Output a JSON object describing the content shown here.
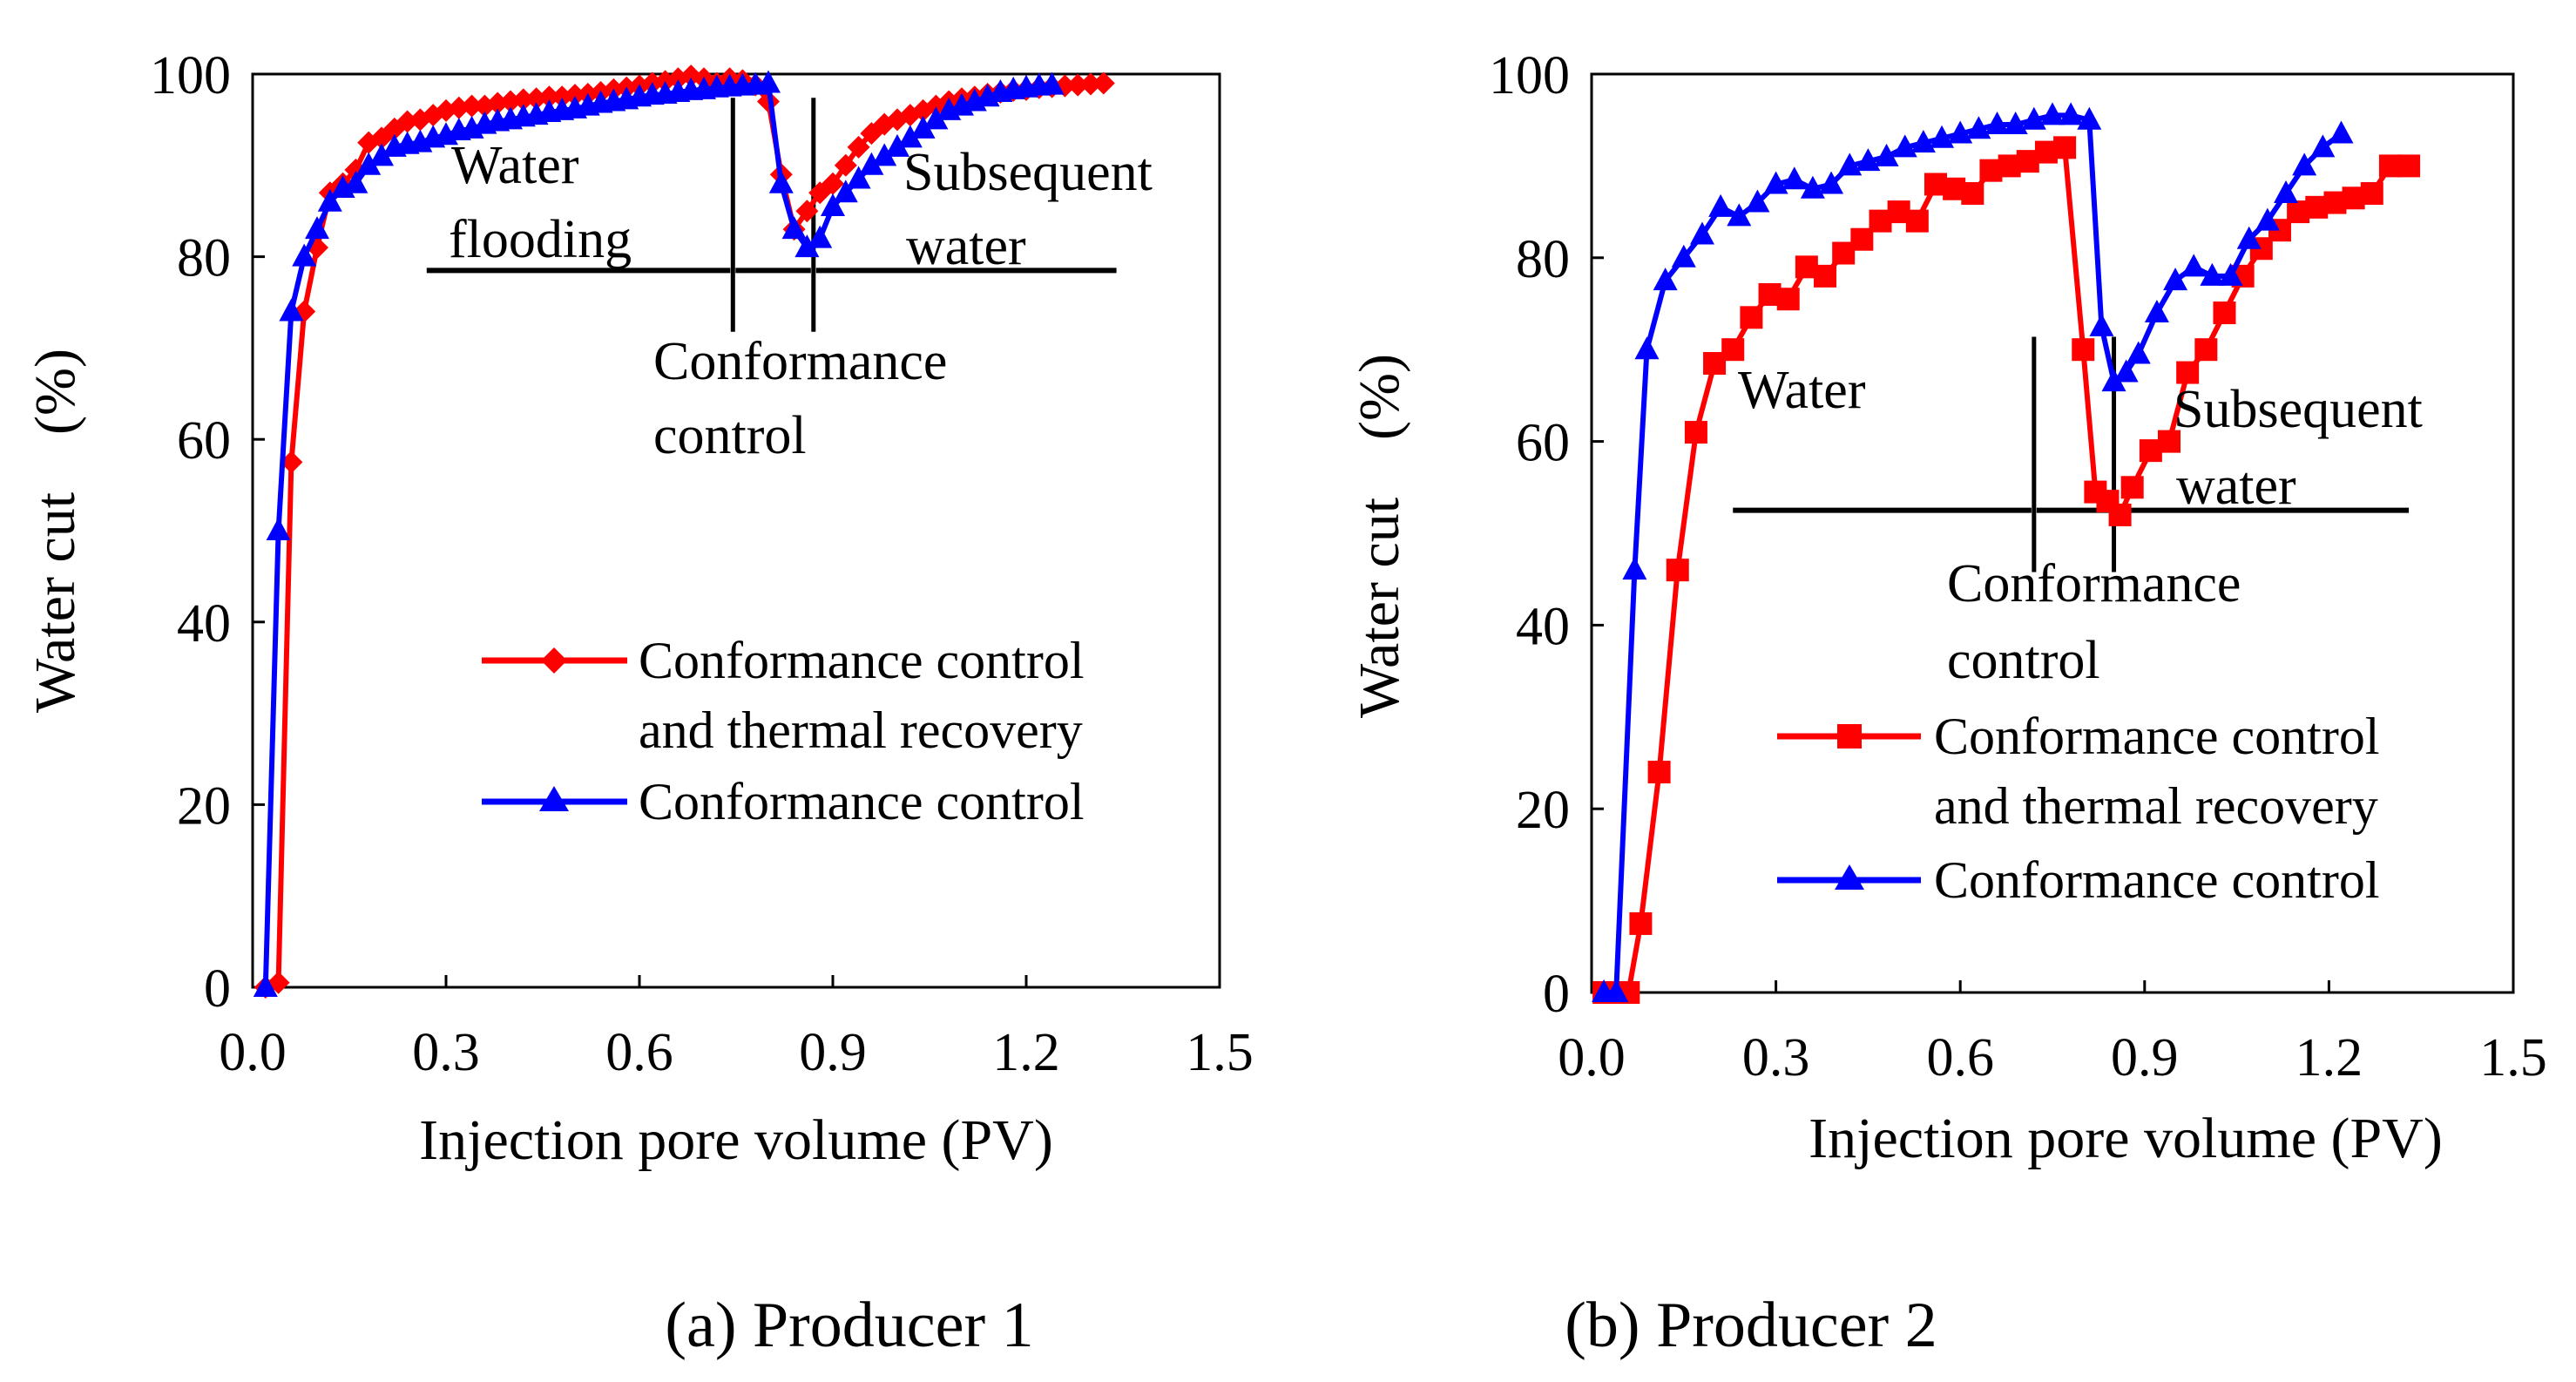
{
  "colors": {
    "conf_thermal": "#ff0000",
    "conf": "#0000ff",
    "axis": "#000000",
    "background": "#ffffff"
  },
  "chart_data": [
    {
      "type": "line",
      "title": "(a) Producer 1",
      "xlabel": "Injection pore volume (PV)",
      "ylabel": "Water cut　(%)",
      "xlim": [
        0,
        1.5
      ],
      "ylim": [
        0,
        100
      ],
      "xticks": [
        "0.0",
        "0.3",
        "0.6",
        "0.9",
        "1.2",
        "1.5"
      ],
      "yticks": [
        "0",
        "20",
        "40",
        "60",
        "80",
        "100"
      ],
      "grid": false,
      "legend": {
        "placement": "lower-right",
        "entries": [
          "Conformance control and thermal recovery",
          "Conformance control"
        ]
      },
      "legend_lines": [
        [
          "Conformance control",
          "and thermal recovery"
        ],
        [
          "Conformance control"
        ]
      ],
      "series": [
        {
          "name": "Conformance control and thermal recovery",
          "color": "#ff0000",
          "marker": "diamond",
          "x": [
            0.02,
            0.04,
            0.06,
            0.08,
            0.1,
            0.12,
            0.14,
            0.16,
            0.18,
            0.2,
            0.22,
            0.24,
            0.26,
            0.28,
            0.3,
            0.32,
            0.34,
            0.36,
            0.38,
            0.4,
            0.42,
            0.44,
            0.46,
            0.48,
            0.5,
            0.52,
            0.54,
            0.56,
            0.58,
            0.6,
            0.62,
            0.64,
            0.66,
            0.68,
            0.7,
            0.72,
            0.74,
            0.76,
            0.78,
            0.8,
            0.82,
            0.84,
            0.86,
            0.88,
            0.9,
            0.92,
            0.94,
            0.96,
            0.98,
            1.0,
            1.02,
            1.04,
            1.06,
            1.08,
            1.1,
            1.12,
            1.14,
            1.16,
            1.18,
            1.2,
            1.22,
            1.24,
            1.26,
            1.28,
            1.3,
            1.32
          ],
          "y": [
            0,
            0.5,
            57.5,
            74,
            81,
            87,
            88,
            89.5,
            92.5,
            93,
            94,
            94.8,
            95,
            95.5,
            96,
            96.3,
            96.5,
            96.5,
            96.8,
            97,
            97.2,
            97.3,
            97.5,
            97.5,
            97.7,
            97.8,
            98,
            98.3,
            98.5,
            98.7,
            99,
            99.2,
            99.5,
            99.8,
            99.5,
            99,
            99.5,
            99.3,
            98.8,
            97,
            89,
            83,
            85,
            87,
            88,
            90,
            92,
            93.5,
            94.5,
            95,
            95.5,
            96,
            96.5,
            97,
            97.3,
            97.5,
            97.8,
            98,
            98.2,
            98.3,
            98.5,
            98.6,
            98.7,
            98.8,
            98.9,
            99
          ]
        },
        {
          "name": "Conformance control",
          "color": "#0000ff",
          "marker": "triangle",
          "x": [
            0.02,
            0.04,
            0.06,
            0.08,
            0.1,
            0.12,
            0.14,
            0.16,
            0.18,
            0.2,
            0.22,
            0.24,
            0.26,
            0.28,
            0.3,
            0.32,
            0.34,
            0.36,
            0.38,
            0.4,
            0.42,
            0.44,
            0.46,
            0.48,
            0.5,
            0.52,
            0.54,
            0.56,
            0.58,
            0.6,
            0.62,
            0.64,
            0.66,
            0.68,
            0.7,
            0.72,
            0.74,
            0.76,
            0.78,
            0.8,
            0.82,
            0.84,
            0.86,
            0.88,
            0.9,
            0.92,
            0.94,
            0.96,
            0.98,
            1.0,
            1.02,
            1.04,
            1.06,
            1.08,
            1.1,
            1.12,
            1.14,
            1.16,
            1.18,
            1.2,
            1.22,
            1.24
          ],
          "y": [
            0,
            50,
            74,
            80,
            83,
            86,
            87.5,
            88,
            90,
            91,
            92,
            92.3,
            92.5,
            93,
            93.3,
            93.8,
            94,
            94.5,
            94.8,
            95,
            95.3,
            95.5,
            95.8,
            96,
            96.2,
            96.5,
            96.8,
            97,
            97.2,
            97.5,
            97.7,
            97.8,
            98,
            98.2,
            98.3,
            98.5,
            98.6,
            98.7,
            98.8,
            99,
            88,
            83,
            81,
            82,
            85.5,
            87,
            88.5,
            90,
            91,
            92,
            93,
            94,
            95,
            96,
            96.5,
            97,
            97.5,
            98,
            98.3,
            98.5,
            98.7,
            98.8
          ]
        }
      ],
      "annotations": {
        "water_flooding": [
          "Water",
          "flooding"
        ],
        "subsequent_water": [
          "Subsequent",
          "water"
        ],
        "conformance_control": [
          "Conformance",
          "control"
        ]
      },
      "stage_boundaries_pv": [
        0.745,
        0.87
      ],
      "stage_arrow_level": 78.5
    },
    {
      "type": "line",
      "title": "(b) Producer 2",
      "xlabel": "Injection pore volume (PV)",
      "ylabel": "Water cut　(%)",
      "xlim": [
        0,
        1.5
      ],
      "ylim": [
        0,
        100
      ],
      "xticks": [
        "0.0",
        "0.3",
        "0.6",
        "0.9",
        "1.2",
        "1.5"
      ],
      "yticks": [
        "0",
        "20",
        "40",
        "60",
        "80",
        "100"
      ],
      "grid": false,
      "legend": {
        "placement": "lower-right",
        "entries": [
          "Conformance control and thermal recovery",
          "Conformance control"
        ]
      },
      "legend_lines": [
        [
          "Conformance control",
          "and thermal recovery"
        ],
        [
          "Conformance control"
        ]
      ],
      "series": [
        {
          "name": "Conformance control and thermal recovery",
          "color": "#ff0000",
          "marker": "square",
          "x": [
            0.02,
            0.04,
            0.06,
            0.08,
            0.11,
            0.14,
            0.17,
            0.2,
            0.23,
            0.26,
            0.29,
            0.32,
            0.35,
            0.38,
            0.41,
            0.44,
            0.47,
            0.5,
            0.53,
            0.56,
            0.59,
            0.62,
            0.65,
            0.68,
            0.71,
            0.74,
            0.77,
            0.8,
            0.82,
            0.84,
            0.86,
            0.88,
            0.91,
            0.94,
            0.97,
            1.0,
            1.03,
            1.06,
            1.09,
            1.12,
            1.15,
            1.18,
            1.21,
            1.24,
            1.27,
            1.3,
            1.33
          ],
          "y": [
            0,
            0,
            0,
            7.5,
            24,
            46,
            61,
            68.5,
            70,
            73.5,
            76,
            75.5,
            79,
            78,
            80.5,
            82,
            84,
            85,
            84,
            88,
            87.5,
            87,
            89.5,
            90,
            90.5,
            91.5,
            92,
            70,
            54.5,
            53.5,
            52,
            55,
            59,
            60,
            67.5,
            70,
            74,
            78,
            81,
            83,
            85,
            85.5,
            86,
            86.5,
            87,
            90,
            90
          ]
        },
        {
          "name": "Conformance control",
          "color": "#0000ff",
          "marker": "triangle",
          "x": [
            0.02,
            0.04,
            0.07,
            0.09,
            0.12,
            0.15,
            0.18,
            0.21,
            0.24,
            0.27,
            0.3,
            0.33,
            0.36,
            0.39,
            0.42,
            0.45,
            0.48,
            0.51,
            0.54,
            0.57,
            0.6,
            0.63,
            0.66,
            0.69,
            0.72,
            0.75,
            0.78,
            0.81,
            0.83,
            0.85,
            0.87,
            0.89,
            0.92,
            0.95,
            0.98,
            1.01,
            1.04,
            1.07,
            1.1,
            1.13,
            1.16,
            1.19,
            1.22
          ],
          "y": [
            0,
            0,
            46,
            70,
            77.5,
            80,
            82.5,
            85.5,
            84.5,
            86,
            88,
            88.5,
            87.5,
            88,
            90,
            90.5,
            91,
            92,
            92.5,
            93,
            93.5,
            94,
            94.5,
            94.5,
            95,
            95.5,
            95.5,
            95,
            72.5,
            66.5,
            67.5,
            69.5,
            74,
            77.5,
            79,
            78,
            78,
            82,
            84,
            87,
            90,
            92,
            93.5
          ]
        }
      ],
      "annotations": {
        "water": [
          "Water"
        ],
        "subsequent_water": [
          "Subsequent",
          "water"
        ],
        "conformance_control": [
          "Conformance",
          "control"
        ]
      },
      "stage_boundaries_pv": [
        0.72,
        0.85
      ],
      "stage_arrow_level": 52.5
    }
  ]
}
